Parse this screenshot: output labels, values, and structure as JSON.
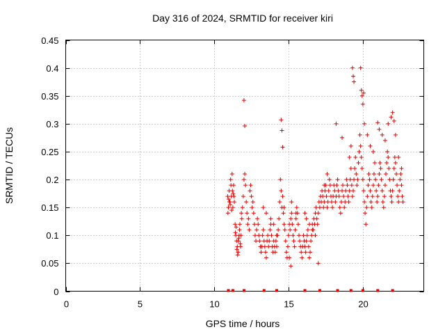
{
  "chart_data": {
    "type": "scatter",
    "title": "Day 316 of 2024, SRMTID for receiver kiri",
    "xlabel": "GPS time / hours",
    "ylabel": "SRMTID / TECUs",
    "xlim": [
      0,
      24.1
    ],
    "ylim": [
      0,
      0.45
    ],
    "x_ticks": [
      0,
      5,
      10,
      15,
      20
    ],
    "x_tick_labels": [
      "0",
      "5",
      "10",
      "15",
      "20"
    ],
    "y_ticks": [
      0,
      0.05,
      0.1,
      0.15,
      0.2,
      0.25,
      0.3,
      0.35,
      0.4,
      0.45
    ],
    "y_tick_labels": [
      "0",
      "0.05",
      "0.1",
      "0.15",
      "0.2",
      "0.25",
      "0.3",
      "0.35",
      "0.4",
      "0.45"
    ],
    "grid": true,
    "marker": "plus",
    "color": "#e00000",
    "series": [
      {
        "values_x": [
          10.9,
          10.95,
          11.0,
          11.05,
          11.1,
          11.15,
          11.2,
          11.25,
          11.3,
          11.35,
          10.92,
          11.02,
          11.12,
          11.22,
          11.32,
          10.97,
          11.07,
          11.17,
          11.27,
          11.4,
          11.45,
          11.5,
          11.55,
          11.6,
          11.65,
          11.7,
          11.75,
          11.8,
          11.85,
          11.42,
          11.52,
          11.62,
          11.72,
          11.82,
          11.47,
          11.57,
          11.67,
          11.77,
          11.9,
          11.95,
          12.0,
          12.05,
          12.1,
          12.15,
          12.2,
          12.25,
          12.3,
          12.35,
          12.4,
          12.45,
          12.5,
          12.55,
          12.6,
          12.65,
          12.7,
          12.75,
          12.8,
          12.85,
          12.9,
          12.95,
          13.0,
          13.05,
          13.1,
          13.15,
          13.2,
          13.25,
          13.3,
          13.35,
          13.4,
          13.45,
          13.5,
          13.55,
          13.6,
          13.65,
          13.7,
          13.75,
          13.8,
          13.85,
          13.9,
          13.95,
          14.0,
          14.05,
          14.1,
          14.15,
          14.2,
          14.25,
          14.3,
          14.35,
          14.4,
          14.45,
          14.5,
          14.55,
          14.6,
          14.65,
          14.7,
          14.75,
          14.8,
          14.85,
          14.9,
          14.95,
          15.0,
          15.05,
          15.1,
          15.15,
          15.2,
          15.25,
          15.3,
          15.35,
          15.4,
          15.45,
          15.5,
          15.55,
          15.6,
          15.65,
          15.7,
          15.75,
          15.8,
          15.85,
          15.9,
          15.95,
          16.0,
          16.05,
          16.1,
          16.15,
          16.2,
          16.25,
          16.3,
          16.35,
          16.4,
          16.45,
          16.5,
          16.55,
          16.6,
          16.65,
          16.7,
          16.75,
          16.8,
          16.85,
          16.9,
          16.95,
          17.0,
          17.05,
          17.1,
          17.15,
          17.2,
          17.25,
          17.3,
          17.35,
          17.4,
          17.45,
          17.5,
          17.55,
          17.6,
          17.65,
          17.7,
          17.75,
          17.8,
          17.85,
          17.9,
          17.95,
          18.0,
          18.05,
          18.1,
          18.15,
          18.2,
          18.25,
          18.3,
          18.35,
          18.4,
          18.45,
          18.5,
          18.55,
          18.6,
          18.65,
          18.7,
          18.75,
          18.8,
          18.85,
          18.9,
          18.95,
          19.0,
          19.05,
          19.1,
          19.15,
          19.2,
          19.25,
          19.3,
          19.35,
          19.4,
          19.45,
          19.5,
          19.55,
          19.6,
          19.65,
          19.7,
          19.75,
          19.8,
          19.85,
          19.9,
          19.95,
          20.0,
          20.05,
          20.1,
          20.15,
          20.2,
          20.25,
          20.3,
          20.35,
          20.4,
          20.45,
          20.5,
          20.55,
          20.6,
          20.65,
          20.7,
          20.75,
          20.8,
          20.85,
          20.9,
          20.95,
          21.0,
          21.05,
          21.1,
          21.15,
          21.2,
          21.25,
          21.3,
          21.35,
          21.4,
          21.45,
          21.5,
          21.55,
          21.6,
          21.65,
          21.7,
          21.75,
          21.8,
          21.85,
          21.9,
          21.95,
          22.0,
          22.05,
          22.1,
          22.15,
          22.2,
          22.25,
          22.3,
          22.35,
          22.4,
          22.45,
          22.5,
          22.55,
          22.6,
          22.65,
          22.7,
          12.0,
          12.05,
          14.5,
          14.55,
          15.05,
          15.15,
          18.2,
          18.6,
          19.3,
          19.35,
          19.4,
          19.85,
          19.9,
          19.95,
          20.0,
          20.05,
          21.0,
          21.1,
          21.3,
          21.7,
          21.9,
          22.0,
          22.1,
          22.2,
          14.6,
          16.1,
          16.2,
          17.4,
          17.6,
          19.1,
          19.2,
          20.1,
          20.3,
          20.5,
          20.7,
          21.5,
          22.4,
          22.6,
          13.3,
          13.5,
          13.8,
          14.0,
          14.2,
          14.7,
          15.2,
          15.5,
          16.4,
          16.6,
          16.8,
          17.0
        ],
        "values_y": [
          0.17,
          0.15,
          0.18,
          0.16,
          0.2,
          0.17,
          0.21,
          0.15,
          0.19,
          0.16,
          0.14,
          0.16,
          0.19,
          0.18,
          0.17,
          0.165,
          0.155,
          0.145,
          0.175,
          0.12,
          0.1,
          0.09,
          0.08,
          0.07,
          0.095,
          0.11,
          0.085,
          0.1,
          0.13,
          0.105,
          0.075,
          0.09,
          0.12,
          0.14,
          0.115,
          0.065,
          0.1,
          0.08,
          0.15,
          0.17,
          0.2,
          0.21,
          0.19,
          0.16,
          0.14,
          0.12,
          0.13,
          0.11,
          0.18,
          0.19,
          0.17,
          0.15,
          0.16,
          0.14,
          0.12,
          0.1,
          0.09,
          0.11,
          0.13,
          0.12,
          0.1,
          0.09,
          0.08,
          0.07,
          0.08,
          0.1,
          0.11,
          0.09,
          0.08,
          0.07,
          0.06,
          0.09,
          0.1,
          0.08,
          0.09,
          0.11,
          0.12,
          0.1,
          0.08,
          0.07,
          0.09,
          0.08,
          0.07,
          0.09,
          0.08,
          0.1,
          0.11,
          0.13,
          0.16,
          0.2,
          0.18,
          0.15,
          0.17,
          0.14,
          0.12,
          0.11,
          0.09,
          0.07,
          0.06,
          0.08,
          0.1,
          0.12,
          0.11,
          0.13,
          0.14,
          0.12,
          0.1,
          0.09,
          0.08,
          0.11,
          0.13,
          0.15,
          0.14,
          0.12,
          0.1,
          0.09,
          0.08,
          0.07,
          0.06,
          0.08,
          0.1,
          0.09,
          0.08,
          0.07,
          0.09,
          0.1,
          0.11,
          0.08,
          0.06,
          0.07,
          0.09,
          0.1,
          0.12,
          0.11,
          0.13,
          0.12,
          0.14,
          0.15,
          0.13,
          0.12,
          0.14,
          0.16,
          0.15,
          0.17,
          0.16,
          0.18,
          0.17,
          0.15,
          0.16,
          0.18,
          0.19,
          0.17,
          0.15,
          0.16,
          0.18,
          0.2,
          0.19,
          0.17,
          0.16,
          0.15,
          0.17,
          0.19,
          0.18,
          0.16,
          0.17,
          0.19,
          0.2,
          0.18,
          0.17,
          0.15,
          0.14,
          0.16,
          0.18,
          0.19,
          0.17,
          0.15,
          0.16,
          0.18,
          0.2,
          0.19,
          0.17,
          0.16,
          0.18,
          0.2,
          0.22,
          0.19,
          0.17,
          0.18,
          0.2,
          0.22,
          0.24,
          0.21,
          0.19,
          0.2,
          0.23,
          0.25,
          0.28,
          0.26,
          0.24,
          0.22,
          0.2,
          0.18,
          0.16,
          0.14,
          0.12,
          0.15,
          0.17,
          0.19,
          0.21,
          0.2,
          0.18,
          0.16,
          0.15,
          0.17,
          0.19,
          0.21,
          0.23,
          0.2,
          0.18,
          0.16,
          0.17,
          0.19,
          0.21,
          0.23,
          0.22,
          0.2,
          0.18,
          0.16,
          0.15,
          0.17,
          0.19,
          0.21,
          0.23,
          0.25,
          0.24,
          0.22,
          0.2,
          0.18,
          0.17,
          0.16,
          0.18,
          0.2,
          0.22,
          0.24,
          0.23,
          0.21,
          0.19,
          0.17,
          0.16,
          0.18,
          0.2,
          0.21,
          0.19,
          0.17,
          0.16,
          0.342,
          0.296,
          0.307,
          0.288,
          0.06,
          0.045,
          0.3,
          0.275,
          0.4,
          0.385,
          0.375,
          0.4,
          0.36,
          0.35,
          0.335,
          0.355,
          0.302,
          0.29,
          0.28,
          0.3,
          0.312,
          0.32,
          0.305,
          0.28,
          0.258,
          0.14,
          0.13,
          0.19,
          0.21,
          0.24,
          0.26,
          0.3,
          0.28,
          0.26,
          0.25,
          0.27,
          0.24,
          0.22,
          0.15,
          0.14,
          0.13,
          0.12,
          0.1,
          0.15,
          0.16,
          0.14,
          0.12,
          0.11,
          0.1,
          0.05
        ]
      }
    ],
    "x_zero_markers": [
      10.95,
      11.25,
      12.0,
      13.35,
      14.2,
      16.1,
      17.1,
      18.3,
      19.2,
      20.0,
      21.0,
      22.0
    ]
  }
}
